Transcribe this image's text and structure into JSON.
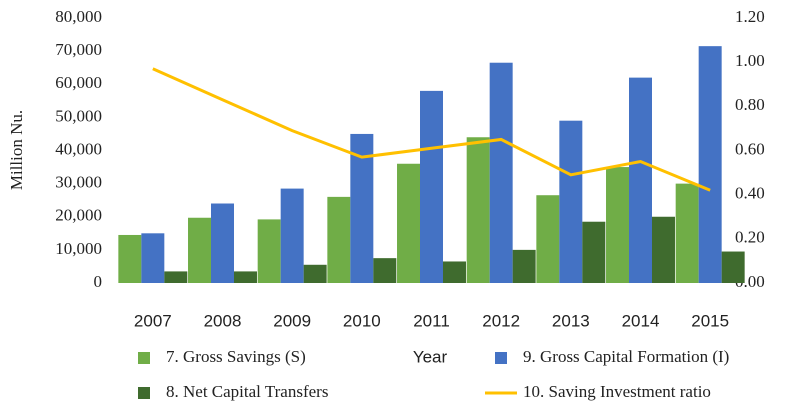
{
  "chart_data": {
    "type": "bar",
    "categories": [
      "2007",
      "2008",
      "2009",
      "2010",
      "2011",
      "2012",
      "2013",
      "2014",
      "2015"
    ],
    "x_label": "Year",
    "y_label": "Million Nu.",
    "series": [
      {
        "name": "7. Gross Savings (S)",
        "color": "#70ad47",
        "type": "bar",
        "values": [
          14500,
          19700,
          19200,
          26000,
          36000,
          44000,
          26500,
          35000,
          30000
        ]
      },
      {
        "name": "9. Gross Capital Formation  (I)",
        "color": "#4472c4",
        "type": "bar",
        "values": [
          15000,
          24000,
          28500,
          45000,
          58000,
          66500,
          49000,
          62000,
          71500
        ]
      },
      {
        "name": "8. Net Capital Transfers",
        "color": "#3f6b2e",
        "type": "bar",
        "values": [
          3500,
          3500,
          5500,
          7500,
          6500,
          10000,
          18500,
          20000,
          9500
        ]
      },
      {
        "name": "10. Saving Investment ratio",
        "color": "#ffc000",
        "type": "line",
        "axis": "y2",
        "values": [
          0.97,
          0.83,
          0.69,
          0.57,
          0.61,
          0.65,
          0.49,
          0.55,
          0.42
        ]
      }
    ],
    "ylim": [
      0,
      80000
    ],
    "yticks": [
      0,
      {
        "value": 10000,
        "label": "10,000"
      },
      {
        "value": 20000,
        "label": "20,000"
      },
      {
        "value": 30000,
        "label": "30,000"
      },
      {
        "value": 40000,
        "label": "40,000"
      },
      {
        "value": 50000,
        "label": "50,000"
      },
      {
        "value": 60000,
        "label": "60,000"
      },
      {
        "value": 70000,
        "label": "70,000"
      },
      {
        "value": 80000,
        "label": "80,000"
      }
    ],
    "y2lim": [
      0,
      1.2
    ],
    "y2ticks": [
      {
        "value": 0,
        "label": "0.00"
      },
      {
        "value": 0.2,
        "label": "0.20"
      },
      {
        "value": 0.4,
        "label": "0.40"
      },
      {
        "value": 0.6,
        "label": "0.60"
      },
      {
        "value": 0.8,
        "label": "0.80"
      },
      {
        "value": 1.0,
        "label": "1.00"
      },
      {
        "value": 1.2,
        "label": "1.20"
      }
    ],
    "grid": false
  }
}
